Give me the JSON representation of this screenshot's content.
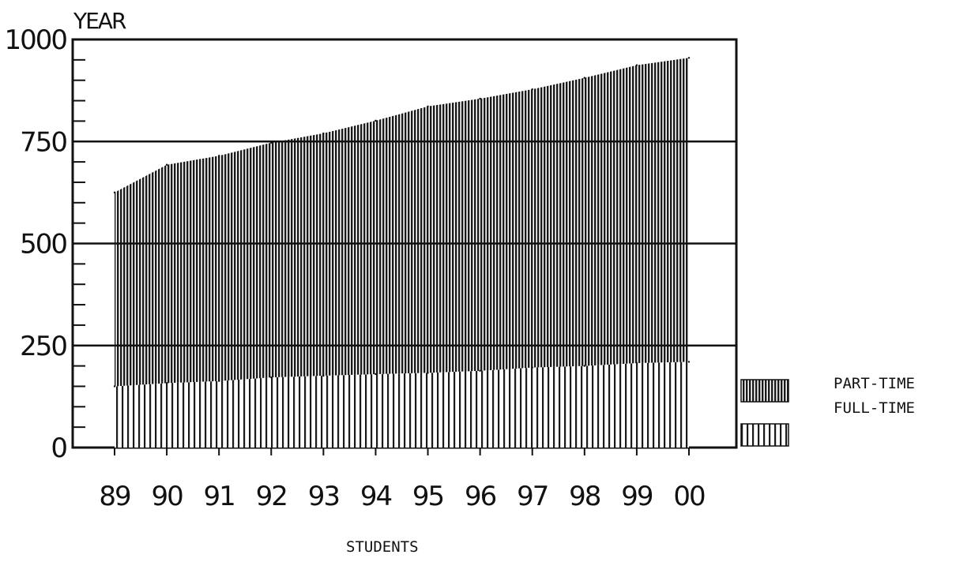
{
  "chart_data": {
    "type": "area",
    "title": "",
    "ylabel": "YEAR",
    "xlabel": "STUDENTS",
    "categories": [
      "89",
      "90",
      "91",
      "92",
      "93",
      "94",
      "95",
      "96",
      "97",
      "98",
      "99",
      "00"
    ],
    "ylim": [
      0,
      1000
    ],
    "yticks": [
      0,
      250,
      500,
      750,
      1000
    ],
    "grid": true,
    "stacked": true,
    "legend_position": "right",
    "series": [
      {
        "name": "FULL-TIME",
        "values": [
          150,
          158,
          163,
          172,
          176,
          180,
          183,
          188,
          196,
          200,
          207,
          210
        ],
        "fill": "vertical-lines-sparse"
      },
      {
        "name": "PART-TIME",
        "values": [
          475,
          535,
          552,
          575,
          594,
          621,
          653,
          667,
          682,
          706,
          730,
          745
        ],
        "fill": "vertical-lines-dense"
      }
    ],
    "totals": [
      625,
      693,
      715,
      747,
      770,
      801,
      836,
      855,
      878,
      906,
      937,
      955
    ]
  },
  "legend": [
    {
      "label": "PART-TIME"
    },
    {
      "label": "FULL-TIME"
    }
  ],
  "colors": {
    "ink": "#111111",
    "background": "#ffffff"
  }
}
